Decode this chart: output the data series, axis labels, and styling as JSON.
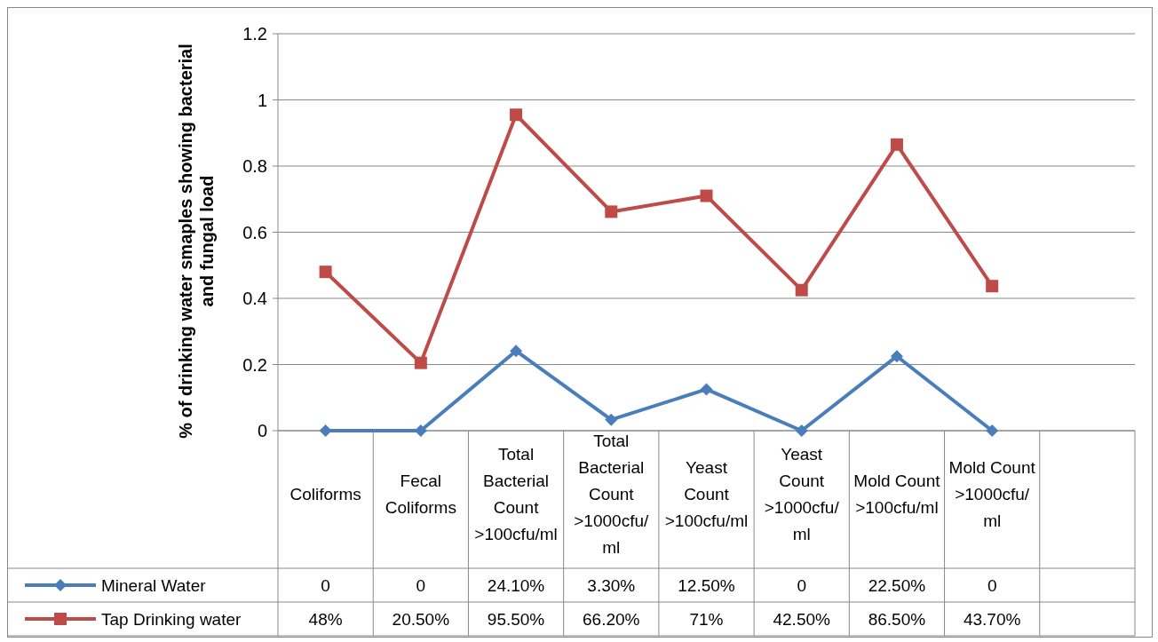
{
  "chart_data": {
    "type": "line",
    "ylabel": "% of drinking water smaples showing bacterial and fungal load",
    "categories": [
      "Coliforms",
      "Fecal Coliforms",
      "Total Bacterial Count >100cfu/ml",
      "Total Bacterial Count >1000cfu/ml",
      "Yeast Count >100cfu/ml",
      "Yeast Count >1000cfu/ml",
      "Mold Count >100cfu/ml",
      "Mold Count >1000cfu/ml",
      null
    ],
    "series": [
      {
        "name": "Mineral Water",
        "color": "#4a7ebb",
        "marker": "diamond",
        "values": [
          0,
          0,
          0.241,
          0.033,
          0.125,
          0,
          0.225,
          0,
          null
        ],
        "value_labels": [
          "0",
          "0",
          "24.10%",
          "3.30%",
          "12.50%",
          "0",
          "22.50%",
          "0",
          null
        ]
      },
      {
        "name": "Tap Drinking water",
        "color": "#be4b48",
        "marker": "square",
        "values": [
          0.48,
          0.205,
          0.955,
          0.662,
          0.71,
          0.425,
          0.865,
          0.437,
          null
        ],
        "value_labels": [
          "48%",
          "20.50%",
          "95.50%",
          "66.20%",
          "71%",
          "42.50%",
          "86.50%",
          "43.70%",
          null
        ]
      }
    ],
    "ylim": [
      0,
      1.2
    ],
    "yticks": [
      0,
      0.2,
      0.4,
      0.6,
      0.8,
      1,
      1.2
    ],
    "grid": "y",
    "legend": "bottom"
  }
}
